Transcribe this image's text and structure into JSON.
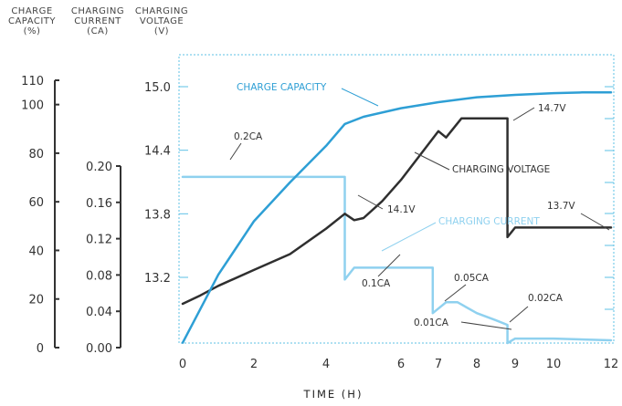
{
  "chart_data": {
    "type": "line",
    "header_labels": [
      {
        "text": "CHARGE\nCAPACITY\n(%)"
      },
      {
        "text": "CHARGING\nCURRENT\n(CA)"
      },
      {
        "text": "CHARGING\nVOLTAGE\n(V)"
      }
    ],
    "xlabel": "TIME (H)",
    "x_ticks": [
      "0",
      "2",
      "4",
      "6",
      "7",
      "8",
      "9",
      "10",
      "12"
    ],
    "axes": {
      "capacity": {
        "ticks": [
          "0",
          "20",
          "40",
          "60",
          "80",
          "100",
          "110"
        ],
        "values": [
          0,
          20,
          40,
          60,
          80,
          100,
          110
        ]
      },
      "current": {
        "ticks": [
          "0.00",
          "0.04",
          "0.08",
          "0.12",
          "0.16",
          "0.20"
        ],
        "values": [
          0,
          0.04,
          0.08,
          0.12,
          0.16,
          0.2
        ]
      },
      "voltage": {
        "ticks": [
          "13.2",
          "13.8",
          "14.4",
          "15.0"
        ],
        "values": [
          13.2,
          13.8,
          14.4,
          15.0
        ]
      }
    },
    "series": [
      {
        "name": "CHARGE CAPACITY",
        "axis": "capacity",
        "color": "#2e9fd5",
        "x": [
          0,
          0.5,
          1,
          2,
          3,
          4,
          4.5,
          5,
          6,
          7,
          8,
          9,
          10,
          11,
          12
        ],
        "values": [
          2,
          16,
          30,
          52,
          68,
          83,
          92,
          95,
          98.5,
          101,
          103,
          104,
          104.7,
          105,
          105
        ]
      },
      {
        "name": "CHARGING CURRENT",
        "axis": "current",
        "color": "#8fd1ef",
        "x": [
          0,
          4.5,
          4.5,
          4.75,
          6,
          6.85,
          6.85,
          7.2,
          7.5,
          8,
          8.5,
          8.8,
          8.8,
          9,
          10,
          12
        ],
        "values": [
          0.188,
          0.188,
          0.075,
          0.088,
          0.088,
          0.088,
          0.038,
          0.05,
          0.05,
          0.038,
          0.03,
          0.025,
          0.005,
          0.01,
          0.01,
          0.008
        ]
      },
      {
        "name": "CHARGING VOLTAGE",
        "axis": "voltage",
        "color": "#2f2f2f",
        "x": [
          0,
          0.5,
          1,
          2,
          3,
          4,
          4.5,
          4.75,
          5,
          5.5,
          6,
          6.5,
          7,
          7.2,
          7.6,
          8,
          8.5,
          8.8,
          8.8,
          9,
          9.5,
          10,
          11,
          12
        ],
        "values": [
          12.95,
          13.03,
          13.12,
          13.27,
          13.42,
          13.66,
          13.8,
          13.74,
          13.76,
          13.92,
          14.12,
          14.35,
          14.58,
          14.52,
          14.7,
          14.7,
          14.7,
          14.7,
          13.58,
          13.67,
          13.67,
          13.67,
          13.67,
          13.67
        ]
      }
    ],
    "annotations": [
      {
        "text": "CHARGE CAPACITY"
      },
      {
        "text": "0.2CA"
      },
      {
        "text": "CHARGING VOLTAGE"
      },
      {
        "text": "14.7V"
      },
      {
        "text": "14.1V"
      },
      {
        "text": "13.7V"
      },
      {
        "text": "CHARGING CURRENT"
      },
      {
        "text": "0.1CA"
      },
      {
        "text": "0.05CA"
      },
      {
        "text": "0.02CA"
      },
      {
        "text": "0.01CA"
      }
    ]
  }
}
